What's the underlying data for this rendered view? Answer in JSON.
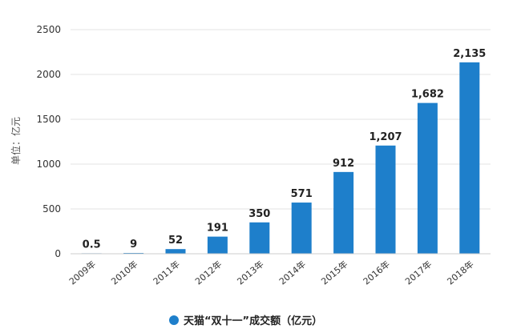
{
  "chart_data": {
    "type": "bar",
    "categories": [
      "2009年",
      "2010年",
      "2011年",
      "2012年",
      "2013年",
      "2014年",
      "2015年",
      "2016年",
      "2017年",
      "2018年"
    ],
    "values": [
      0.5,
      9,
      52,
      191,
      350,
      571,
      912,
      1207,
      1682,
      2135
    ],
    "data_labels": [
      "0.5",
      "9",
      "52",
      "191",
      "350",
      "571",
      "912",
      "1,207",
      "1,682",
      "2,135"
    ],
    "ylabel": "单位：亿元",
    "ylim": [
      0,
      2500
    ],
    "yticks": [
      0,
      500,
      1000,
      1500,
      2000,
      2500
    ],
    "grid": "horizontal",
    "legend_position": "bottom",
    "series": [
      {
        "name": "天猫“双十一”成交额（亿元）",
        "color": "#1e7fcb"
      }
    ]
  }
}
